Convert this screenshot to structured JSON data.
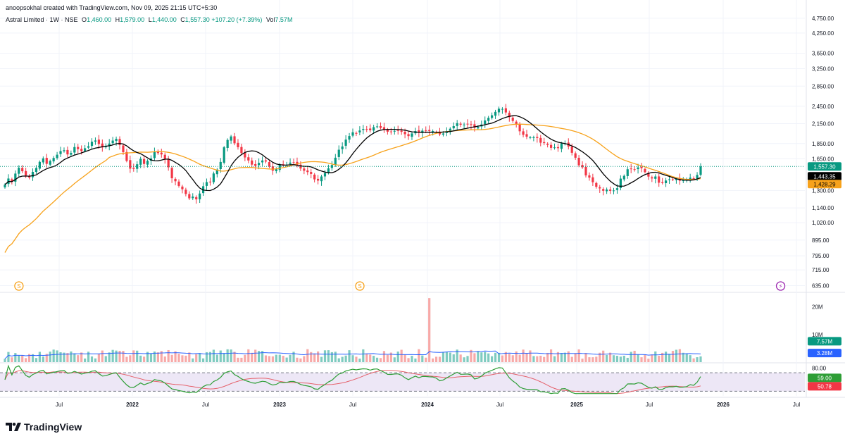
{
  "header": {
    "attribution": "anoopsokhal created with TradingView.com, Nov 09, 2025 21:15 UTC+5:30",
    "symbol": "Astral Limited · 1W · NSE",
    "open_label": "O",
    "open": "1,460.00",
    "high_label": "H",
    "high": "1,579.00",
    "low_label": "L",
    "low": "1,440.00",
    "close_label": "C",
    "close": "1,557.30",
    "change": "+107.20 (+7.39%)",
    "vol_label": "Vol",
    "vol": "7.57M"
  },
  "brand": "TradingView",
  "colors": {
    "up": "#089981",
    "down": "#f23645",
    "ma_fast": "#000000",
    "ma_slow": "#f7a21b",
    "rsi": "#2e9e36",
    "rsi_ma": "#e5606a",
    "rsi_band": "#ede7f6",
    "grid": "#f0f3fa"
  },
  "chart_data": [
    {
      "type": "candlestick",
      "y_scale": "log",
      "ylim": [
        620,
        4850
      ],
      "price_ticks": [
        "4,750.00",
        "4,250.00",
        "3,650.00",
        "3,250.00",
        "2,850.00",
        "2,450.00",
        "2,150.00",
        "1,850.00",
        "1,650.00",
        "1,300.00",
        "1,140.00",
        "1,020.00",
        "895.00",
        "795.00",
        "715.00",
        "635.00"
      ],
      "x_ticks": [
        "Jul",
        "2022",
        "Jul",
        "2023",
        "Jul",
        "2024",
        "Jul",
        "2025",
        "Jul",
        "2026",
        "Jul"
      ],
      "closes": [
        1358,
        1422,
        1388,
        1476,
        1542,
        1502,
        1455,
        1433,
        1495,
        1540,
        1612,
        1655,
        1588,
        1624,
        1660,
        1701,
        1748,
        1760,
        1705,
        1724,
        1802,
        1774,
        1748,
        1786,
        1813,
        1876,
        1894,
        1843,
        1797,
        1808,
        1850,
        1892,
        1917,
        1830,
        1734,
        1624,
        1532,
        1529,
        1583,
        1649,
        1587,
        1625,
        1654,
        1743,
        1722,
        1705,
        1648,
        1547,
        1425,
        1393,
        1345,
        1312,
        1266,
        1225,
        1242,
        1216,
        1270,
        1342,
        1384,
        1389,
        1477,
        1521,
        1611,
        1799,
        1901,
        1952,
        1854,
        1800,
        1723,
        1666,
        1629,
        1579,
        1564,
        1600,
        1629,
        1616,
        1555,
        1509,
        1526,
        1580,
        1574,
        1579,
        1603,
        1604,
        1576,
        1533,
        1508,
        1493,
        1472,
        1413,
        1400,
        1444,
        1483,
        1535,
        1574,
        1663,
        1766,
        1810,
        1906,
        1958,
        2014,
        2002,
        2041,
        2065,
        2062,
        2044,
        2093,
        2105,
        2081,
        2056,
        2023,
        2022,
        2035,
        2040,
        2021,
        1985,
        1957,
        1996,
        2033,
        2010,
        2039,
        2038,
        2034,
        2032,
        2018,
        1983,
        1996,
        2031,
        2069,
        2110,
        2157,
        2132,
        2135,
        2139,
        2131,
        2083,
        2096,
        2135,
        2201,
        2245,
        2289,
        2348,
        2405,
        2401,
        2338,
        2257,
        2193,
        2136,
        2029,
        1976,
        1949,
        1939,
        1939,
        1929,
        1862,
        1857,
        1832,
        1791,
        1798,
        1787,
        1851,
        1854,
        1809,
        1726,
        1663,
        1571,
        1547,
        1456,
        1432,
        1383,
        1336,
        1320,
        1297,
        1309,
        1296,
        1300,
        1322,
        1421,
        1451,
        1525,
        1526,
        1523,
        1546,
        1537,
        1492,
        1443,
        1423,
        1444,
        1378,
        1375,
        1401,
        1414,
        1412,
        1419,
        1399,
        1402,
        1408,
        1431,
        1420,
        1461,
        1557.3
      ],
      "ma_fast_label": "1,443.35",
      "ma_slow_label": "1,428.29",
      "last_price_label": "1,557.30",
      "events": [
        {
          "type": "dividend",
          "label": "S",
          "index": 2
        },
        {
          "type": "dividend",
          "label": "S",
          "index": 100
        },
        {
          "type": "split",
          "label": "⚡",
          "index": 224
        }
      ]
    },
    {
      "type": "bar",
      "title": "Volume",
      "ylim": [
        0,
        24
      ],
      "unit": "M",
      "ticks": [
        "20M",
        "10M"
      ],
      "spike_index": 122,
      "spike_value": 23.2,
      "large_bars": [
        {
          "index": 206,
          "value": 11.3
        },
        {
          "index": 219,
          "value": 11.1
        },
        {
          "index": 226,
          "value": 7.57
        }
      ],
      "last_label": "7.57M",
      "ma_label": "3.28M"
    },
    {
      "type": "line",
      "title": "RSI",
      "ylim": [
        20,
        90
      ],
      "upper_band": 70,
      "lower_band": 30,
      "ticks": [
        "80.00"
      ],
      "rsi_label": "59.00",
      "rsi_ma_label": "50.78"
    }
  ]
}
